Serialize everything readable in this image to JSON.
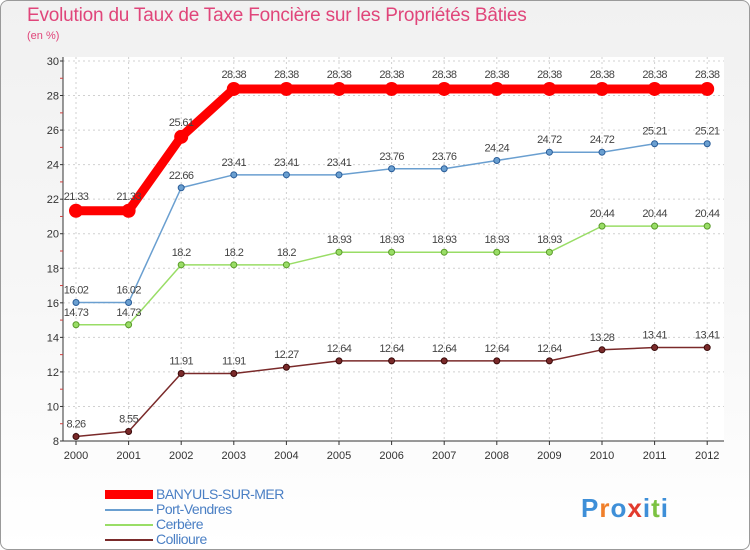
{
  "title": "Evolution du Taux de Taxe Foncière sur les Propriétés Bâties",
  "subtitle": "(en %)",
  "logo": {
    "text": "Proxiti",
    "letters": [
      "P",
      "r",
      "o",
      "x",
      "i",
      "t",
      "i"
    ],
    "colors": [
      "#3e8fd8",
      "#f07f2a",
      "#3e8fd8",
      "#e23b2e",
      "#3e8fd8",
      "#7cc242",
      "#3e8fd8"
    ]
  },
  "chart_data": {
    "type": "line",
    "title": "Evolution du Taux de Taxe Foncière sur les Propriétés Bâties",
    "ylabel": "(en %)",
    "x": [
      "2000",
      "2001",
      "2002",
      "2003",
      "2004",
      "2005",
      "2006",
      "2007",
      "2008",
      "2009",
      "2010",
      "2011",
      "2012"
    ],
    "ylim": [
      8,
      30
    ],
    "yticks": [
      8,
      10,
      12,
      14,
      16,
      18,
      20,
      22,
      24,
      26,
      28,
      30
    ],
    "grid": true,
    "series": [
      {
        "name": "BANYULS-SUR-MER",
        "color": "#ff0000",
        "labels": [
          "21.33",
          "21.33",
          "25.61",
          "28.38",
          "28.38",
          "28.38",
          "28.38",
          "28.38",
          "28.38",
          "28.38",
          "28.38",
          "28.38",
          "28.38"
        ],
        "values": [
          21.33,
          21.33,
          25.61,
          28.38,
          28.38,
          28.38,
          28.38,
          28.38,
          28.38,
          28.38,
          28.38,
          28.38,
          28.38
        ]
      },
      {
        "name": "Port-Vendres",
        "color": "#6a9fd0",
        "labels": [
          "16.02",
          "16.02",
          "22.66",
          "23.41",
          "23.41",
          "23.41",
          "23.76",
          "23.76",
          "24.24",
          "24.72",
          "24.72",
          "25.21",
          "25.21"
        ],
        "values": [
          16.02,
          16.02,
          22.66,
          23.41,
          23.41,
          23.41,
          23.76,
          23.76,
          24.24,
          24.72,
          24.72,
          25.21,
          25.21
        ]
      },
      {
        "name": "Cerbère",
        "color": "#99dd66",
        "labels": [
          "14.73",
          "14.73",
          "18.2",
          "18.2",
          "18.2",
          "18.93",
          "18.93",
          "18.93",
          "18.93",
          "18.93",
          "20.44",
          "20.44",
          "20.44"
        ],
        "values": [
          14.73,
          14.73,
          18.2,
          18.2,
          18.2,
          18.93,
          18.93,
          18.93,
          18.93,
          18.93,
          20.44,
          20.44,
          20.44
        ]
      },
      {
        "name": "Collioure",
        "color": "#7a2a2a",
        "labels": [
          "8.26",
          "8.55",
          "11.91",
          "11.91",
          "12.27",
          "12.64",
          "12.64",
          "12.64",
          "12.64",
          "12.64",
          "13.28",
          "13.41",
          "13.41"
        ],
        "values": [
          8.26,
          8.55,
          11.91,
          11.91,
          12.27,
          12.64,
          12.64,
          12.64,
          12.64,
          12.64,
          13.28,
          13.41,
          13.41
        ]
      }
    ]
  }
}
